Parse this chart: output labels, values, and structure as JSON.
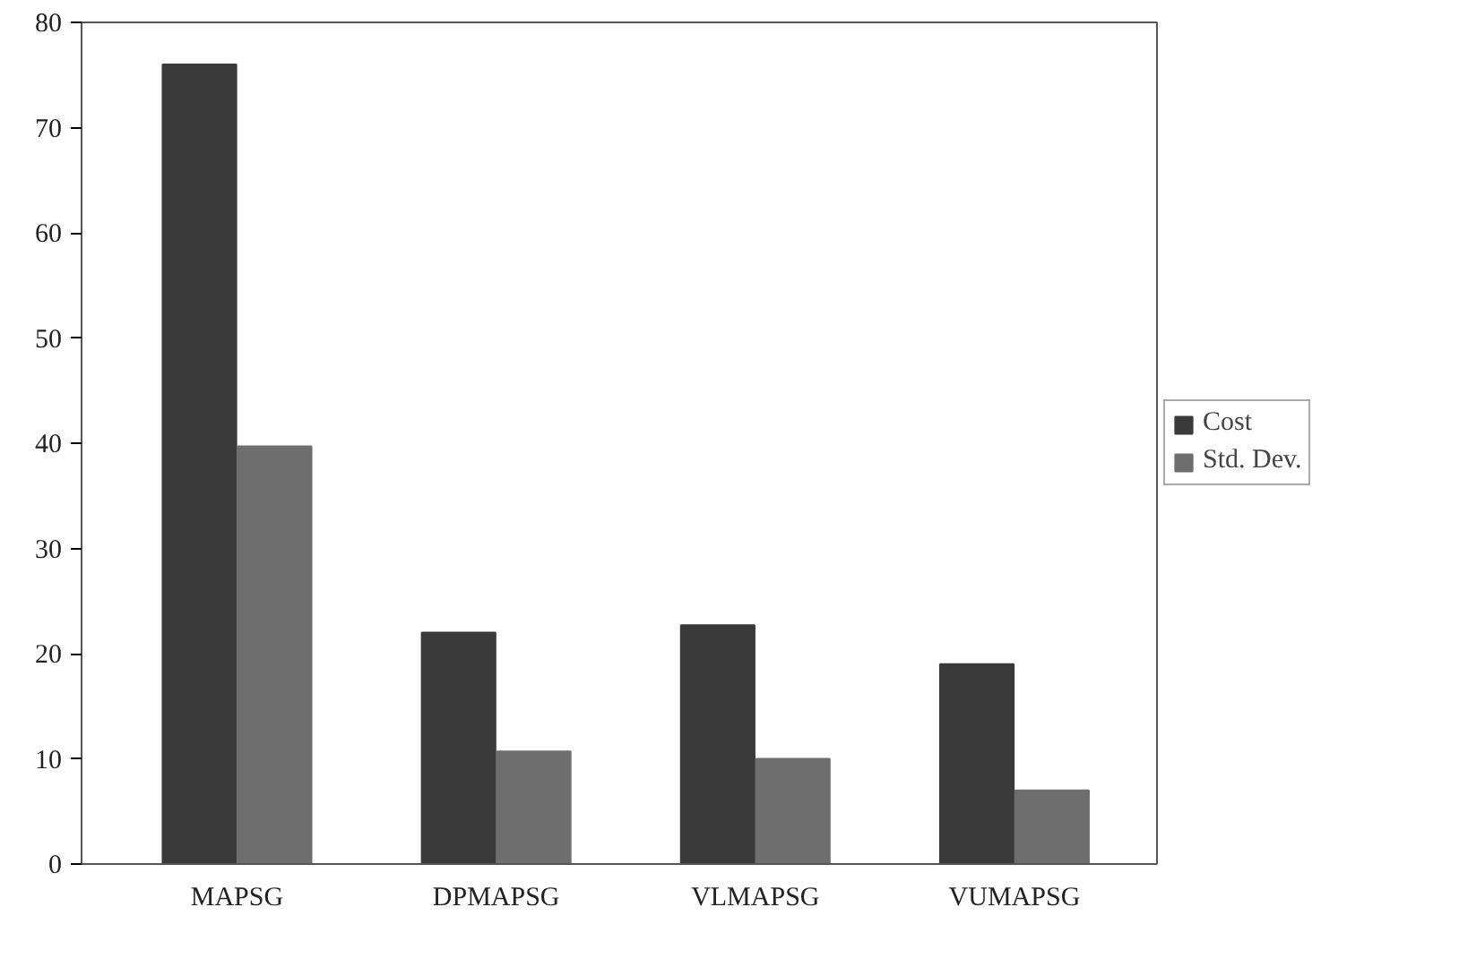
{
  "chart_data": {
    "type": "bar",
    "categories": [
      "MAPSG",
      "DPMAPSG",
      "VLMAPSG",
      "VUMAPSG"
    ],
    "series": [
      {
        "name": "Cost",
        "color": "#3a3a3a",
        "values": [
          76,
          22,
          22.7,
          19
        ]
      },
      {
        "name": "Std. Dev.",
        "color": "#6e6e6e",
        "values": [
          39.7,
          10.7,
          10,
          7
        ]
      }
    ],
    "ylim": [
      0,
      80
    ],
    "yticks": [
      0,
      10,
      20,
      30,
      40,
      50,
      60,
      70,
      80
    ],
    "grid": false,
    "legend": "right"
  }
}
